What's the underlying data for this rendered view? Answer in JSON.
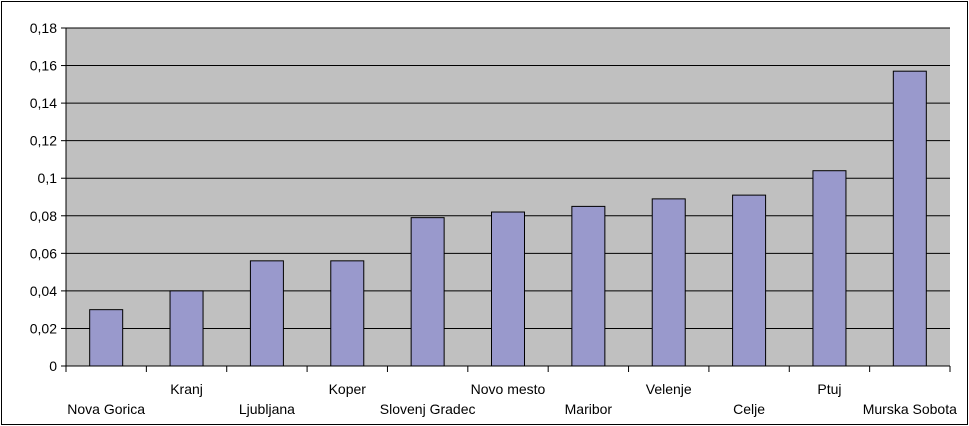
{
  "chart_data": {
    "type": "bar",
    "title": "",
    "xlabel": "",
    "ylabel": "",
    "categories": [
      "Nova Gorica",
      "Kranj",
      "Ljubljana",
      "Koper",
      "Slovenj Gradec",
      "Novo mesto",
      "Maribor",
      "Velenje",
      "Celje",
      "Ptuj",
      "Murska Sobota"
    ],
    "values": [
      0.03,
      0.04,
      0.056,
      0.056,
      0.079,
      0.082,
      0.085,
      0.089,
      0.091,
      0.104,
      0.157
    ],
    "ylim": [
      0,
      0.18
    ],
    "yticks": [
      "0",
      "0,02",
      "0,04",
      "0,06",
      "0,08",
      "0,1",
      "0,12",
      "0,14",
      "0,16",
      "0,18"
    ],
    "grid": true,
    "legend": "none",
    "colors": {
      "plot_background": "#c0c0c0",
      "bar_fill": "#9999cc",
      "bar_stroke": "#000000",
      "gridline": "#000000"
    }
  }
}
